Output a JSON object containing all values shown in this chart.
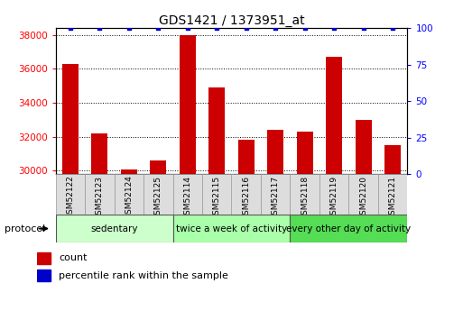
{
  "title": "GDS1421 / 1373951_at",
  "samples": [
    "GSM52122",
    "GSM52123",
    "GSM52124",
    "GSM52125",
    "GSM52114",
    "GSM52115",
    "GSM52116",
    "GSM52117",
    "GSM52118",
    "GSM52119",
    "GSM52120",
    "GSM52121"
  ],
  "counts": [
    36300,
    32200,
    30100,
    30600,
    38000,
    34900,
    31800,
    32400,
    32300,
    36700,
    33000,
    31500
  ],
  "percentile_ranks": [
    100,
    100,
    100,
    100,
    100,
    100,
    100,
    100,
    100,
    100,
    100,
    100
  ],
  "ylim_left": [
    29800,
    38400
  ],
  "ylim_right": [
    0,
    100
  ],
  "yticks_left": [
    30000,
    32000,
    34000,
    36000,
    38000
  ],
  "yticks_right": [
    0,
    25,
    50,
    75,
    100
  ],
  "bar_color": "#cc0000",
  "scatter_color": "#0000cc",
  "groups": [
    {
      "label": "sedentary",
      "start": 0,
      "end": 4,
      "color": "#ccffcc"
    },
    {
      "label": "twice a week of activity",
      "start": 4,
      "end": 8,
      "color": "#aaffaa"
    },
    {
      "label": "every other day of activity",
      "start": 8,
      "end": 12,
      "color": "#55dd55"
    }
  ],
  "protocol_label": "protocol",
  "legend_count_label": "count",
  "legend_pct_label": "percentile rank within the sample",
  "title_fontsize": 10,
  "tick_fontsize": 7.5,
  "group_label_fontsize": 7.5,
  "sample_fontsize": 6.5,
  "background_color": "#ffffff"
}
